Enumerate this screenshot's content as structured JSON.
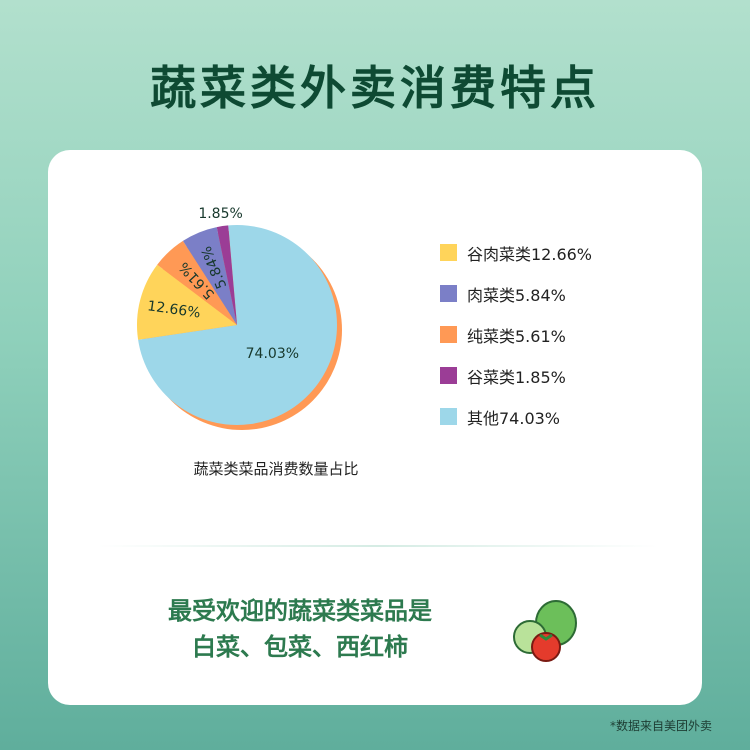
{
  "title": "蔬菜类外卖消费特点",
  "chart_data": {
    "type": "pie",
    "title": "蔬菜类菜品消费数量占比",
    "slices": [
      {
        "label": "其他",
        "value": 74.03,
        "color": "#9dd7e9"
      },
      {
        "label": "谷肉菜类",
        "value": 12.66,
        "color": "#ffd45a"
      },
      {
        "label": "纯菜类",
        "value": 5.61,
        "color": "#ff9955"
      },
      {
        "label": "肉菜类",
        "value": 5.84,
        "color": "#7b7fc7"
      },
      {
        "label": "谷菜类",
        "value": 1.85,
        "color": "#9b3d96"
      }
    ],
    "data_labels": [
      "74.03%",
      "12.66%",
      "5.61%",
      "5.84%",
      "1.85%"
    ],
    "legend": [
      {
        "text": "谷肉菜类12.66%",
        "color": "#ffd45a"
      },
      {
        "text": "肉菜类5.84%",
        "color": "#7b7fc7"
      },
      {
        "text": "纯菜类5.61%",
        "color": "#ff9955"
      },
      {
        "text": "谷菜类1.85%",
        "color": "#9b3d96"
      },
      {
        "text": "其他74.03%",
        "color": "#9dd7e9"
      }
    ],
    "legend_position": "right"
  },
  "highlight": {
    "line1": "最受欢迎的蔬菜类菜品是",
    "line2": "白菜、包菜、西红柿"
  },
  "footnote": "*数据来自美团外卖"
}
